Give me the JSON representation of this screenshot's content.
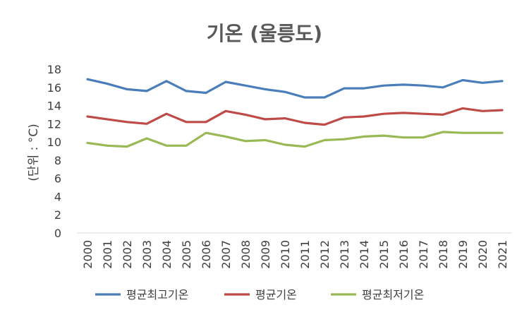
{
  "chart_data": {
    "type": "line",
    "title": "기온 (울릉도)",
    "xlabel": "",
    "ylabel": "(단위 : °C)",
    "ylim": [
      0,
      18
    ],
    "yticks": [
      0,
      2,
      4,
      6,
      8,
      10,
      12,
      14,
      16,
      18
    ],
    "grid": false,
    "legend_position": "bottom",
    "categories": [
      "2000",
      "2001",
      "2002",
      "2003",
      "2004",
      "2005",
      "2006",
      "2007",
      "2008",
      "2009",
      "2010",
      "2011",
      "2012",
      "2013",
      "2014",
      "2015",
      "2016",
      "2017",
      "2018",
      "2019",
      "2020",
      "2021"
    ],
    "series": [
      {
        "name": "평균최고기온",
        "color": "#4a7ebb",
        "values": [
          16.9,
          16.4,
          15.8,
          15.6,
          16.7,
          15.6,
          15.4,
          16.6,
          16.2,
          15.8,
          15.5,
          14.9,
          14.9,
          15.9,
          15.9,
          16.2,
          16.3,
          16.2,
          16.0,
          16.8,
          16.5,
          16.7
        ]
      },
      {
        "name": "평균기온",
        "color": "#be4b48",
        "values": [
          12.8,
          12.5,
          12.2,
          12.0,
          13.1,
          12.2,
          12.2,
          13.4,
          13.0,
          12.5,
          12.6,
          12.1,
          11.9,
          12.7,
          12.8,
          13.1,
          13.2,
          13.1,
          13.0,
          13.7,
          13.4,
          13.5
        ]
      },
      {
        "name": "평균최저기온",
        "color": "#98b954",
        "values": [
          9.9,
          9.6,
          9.5,
          10.4,
          9.6,
          9.6,
          11.0,
          10.6,
          10.1,
          10.2,
          9.7,
          9.5,
          10.2,
          10.3,
          10.6,
          10.7,
          10.5,
          10.5,
          11.1,
          11.0,
          11.0,
          11.0
        ]
      }
    ]
  }
}
